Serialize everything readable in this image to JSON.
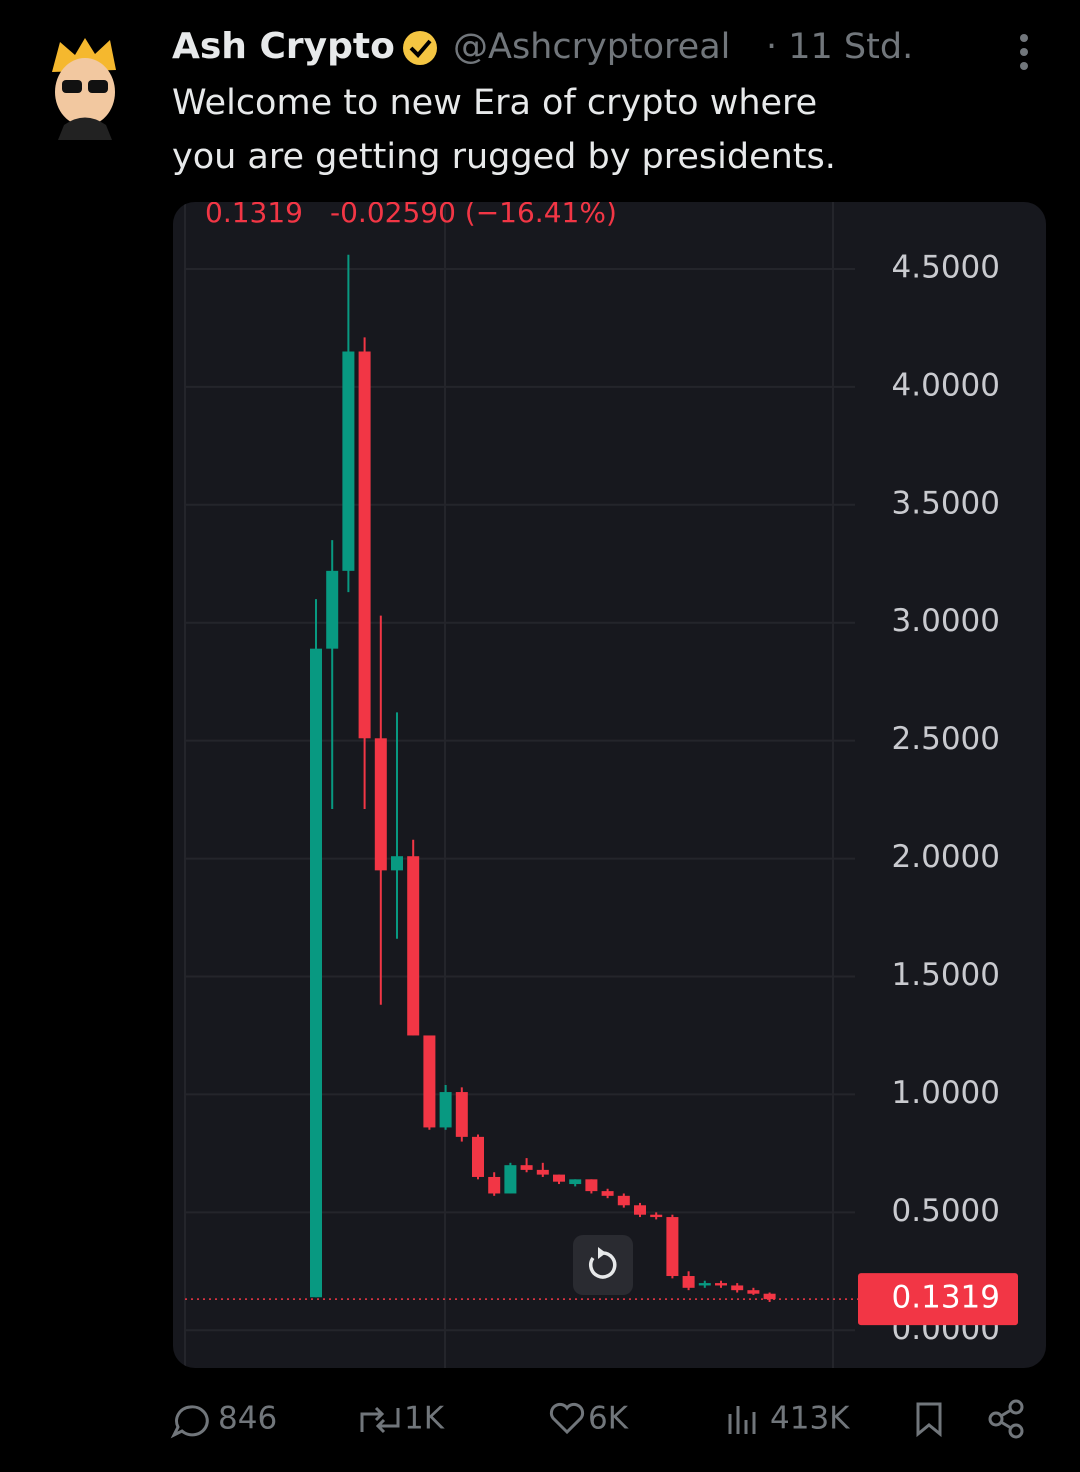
{
  "tweet": {
    "name": "Ash Crypto",
    "handle": "@Ashcryptoreal",
    "time": "· 11 Std.",
    "text_lines": [
      "Welcome to new Era of crypto where",
      "you are getting rugged by presidents."
    ],
    "actions": {
      "replies": "846",
      "reposts": "1K",
      "likes": "6K",
      "views": "413K"
    }
  },
  "chart_data": {
    "type": "candlestick",
    "last_price": 0.1319,
    "change": "-0.02590 (−16.41%)",
    "up_color": "#089981",
    "down_color": "#f23645",
    "ylim": [
      -0.16,
      4.75
    ],
    "yticks": [
      {
        "value": 0,
        "label": "0.0000"
      },
      {
        "value": 0.5,
        "label": "0.5000"
      },
      {
        "value": 1,
        "label": "1.0000"
      },
      {
        "value": 1.5,
        "label": "1.5000"
      },
      {
        "value": 2,
        "label": "2.0000"
      },
      {
        "value": 2.5,
        "label": "2.5000"
      },
      {
        "value": 3,
        "label": "3.0000"
      },
      {
        "value": 3.5,
        "label": "3.5000"
      },
      {
        "value": 4,
        "label": "4.0000"
      },
      {
        "value": 4.5,
        "label": "4.5000"
      }
    ],
    "grid": true,
    "open": [
      0.14,
      2.89,
      3.22,
      4.15,
      2.51,
      1.95,
      2.01,
      1.25,
      0.86,
      1.01,
      0.82,
      0.65,
      0.58,
      0.7,
      0.68,
      0.66,
      0.62,
      0.64,
      0.59,
      0.57,
      0.53,
      0.49,
      0.48,
      0.23,
      0.19,
      0.2,
      0.19,
      0.17,
      0.155
    ],
    "close": [
      2.89,
      3.22,
      4.15,
      2.51,
      1.95,
      2.01,
      1.25,
      0.86,
      1.01,
      0.82,
      0.65,
      0.58,
      0.7,
      0.68,
      0.66,
      0.63,
      0.64,
      0.59,
      0.57,
      0.53,
      0.49,
      0.48,
      0.23,
      0.18,
      0.2,
      0.19,
      0.17,
      0.155,
      0.1319
    ],
    "high": [
      3.1,
      3.35,
      4.56,
      4.21,
      3.03,
      2.62,
      2.08,
      1.25,
      1.04,
      1.03,
      0.83,
      0.67,
      0.71,
      0.73,
      0.71,
      0.66,
      0.64,
      0.64,
      0.6,
      0.58,
      0.54,
      0.5,
      0.49,
      0.25,
      0.21,
      0.21,
      0.2,
      0.18,
      0.16
    ],
    "low": [
      0.14,
      2.21,
      3.13,
      2.21,
      1.38,
      1.66,
      1.25,
      0.85,
      0.85,
      0.8,
      0.64,
      0.57,
      0.58,
      0.67,
      0.65,
      0.62,
      0.61,
      0.58,
      0.56,
      0.52,
      0.48,
      0.47,
      0.22,
      0.17,
      0.18,
      0.18,
      0.16,
      0.15,
      0.12
    ]
  }
}
